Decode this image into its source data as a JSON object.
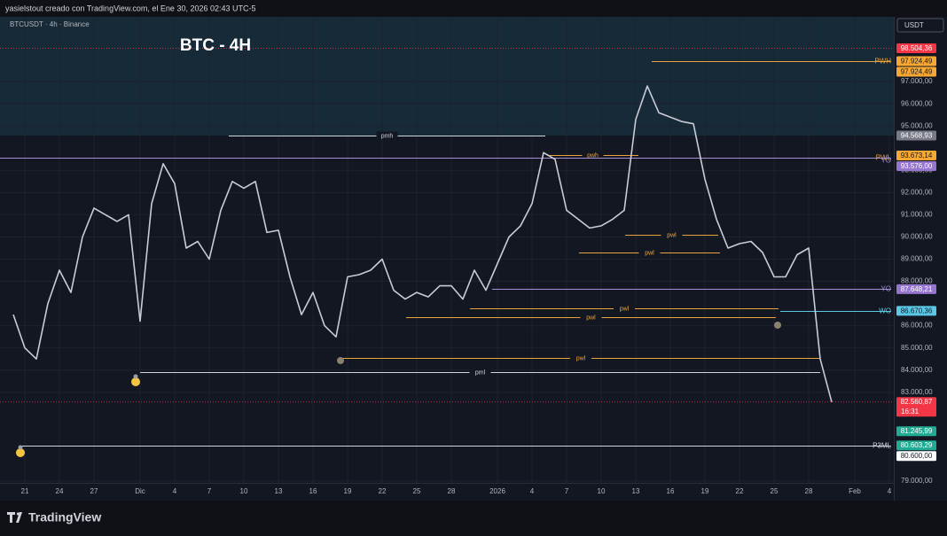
{
  "header": {
    "caption": "yasielstout creado con TradingView.com, el Ene 30, 2026 02:43 UTC-5"
  },
  "footer": {
    "logo": "TradingView"
  },
  "chart_data": {
    "type": "line",
    "symbol": "BTCUSDT · 4h · Binance",
    "title": "BTC - 4H",
    "currency": "USDT",
    "color": "#c9ccd4",
    "categories": [
      null,
      "21",
      null,
      null,
      "24",
      null,
      null,
      "27",
      null,
      null,
      null,
      "Dic",
      null,
      null,
      "4",
      null,
      null,
      "7",
      null,
      null,
      "10",
      null,
      null,
      "13",
      null,
      null,
      "16",
      null,
      null,
      "19",
      null,
      null,
      "22",
      null,
      null,
      "25",
      null,
      null,
      "28",
      null,
      null,
      null,
      "2026",
      null,
      null,
      "4",
      null,
      null,
      "7",
      null,
      null,
      "10",
      null,
      null,
      "13",
      null,
      null,
      "16",
      null,
      null,
      "19",
      null,
      null,
      "22",
      null,
      null,
      "25",
      null,
      null,
      "28",
      null,
      null,
      null,
      "Feb",
      null,
      null,
      "4"
    ],
    "values": [
      86500,
      85000,
      84500,
      87000,
      88500,
      87500,
      90000,
      91300,
      91000,
      90700,
      91000,
      86200,
      91500,
      93300,
      92400,
      89500,
      89800,
      89000,
      91200,
      92500,
      92200,
      92500,
      90200,
      90300,
      88200,
      86500,
      87500,
      86000,
      85500,
      88200,
      88300,
      88500,
      89000,
      87600,
      87200,
      87500,
      87300,
      87800,
      87800,
      87200,
      88500,
      87600,
      88800,
      90000,
      90500,
      91500,
      93800,
      93500,
      91200,
      90800,
      90400,
      90500,
      90800,
      91200,
      95300,
      96800,
      95600,
      95400,
      95200,
      95100,
      92600,
      90800,
      89500,
      89700,
      89800,
      89300,
      88200,
      88200,
      89200,
      89500,
      84500,
      82560.87,
      null,
      null,
      null,
      null,
      null
    ],
    "ylim": [
      78120,
      99920
    ],
    "yticks": [
      {
        "value": 79000,
        "label": "79.000,00"
      },
      {
        "value": 83000,
        "label": "83.000,00"
      },
      {
        "value": 84000,
        "label": "84.000,00"
      },
      {
        "value": 85000,
        "label": "85.000,00"
      },
      {
        "value": 86000,
        "label": "86.000,00"
      },
      {
        "value": 88000,
        "label": "88.000,00"
      },
      {
        "value": 89000,
        "label": "89.000,00"
      },
      {
        "value": 90000,
        "label": "90.000,00"
      },
      {
        "value": 91000,
        "label": "91.000,00"
      },
      {
        "value": 92000,
        "label": "92.000,00"
      },
      {
        "value": 93000,
        "label": "93.000,00"
      },
      {
        "value": 95000,
        "label": "95.000,00"
      },
      {
        "value": 96000,
        "label": "96.000,00"
      },
      {
        "value": 97000,
        "label": "97.000,00"
      }
    ],
    "grid": true,
    "zone": {
      "from": 94568.93,
      "color": "#172a37"
    },
    "levels": [
      {
        "label": "PWH",
        "value": 97924.49,
        "color": "#e8a33d",
        "pos": "right"
      },
      {
        "label": "pmh",
        "value": 94568.93,
        "color": "#d1d4dc",
        "pos": "center"
      },
      {
        "label": "pwh",
        "value": 93673.14,
        "color": "#e8a33d",
        "pos": "center"
      },
      {
        "label": "PWL",
        "value": 93576,
        "color": "#e8a33d",
        "pos": "right"
      },
      {
        "label": "YO",
        "value": 93576,
        "color": "#a58fd6",
        "pos": "right"
      },
      {
        "label": "pwl",
        "value": 90100,
        "color": "#e8a33d",
        "pos": "center"
      },
      {
        "label": "pwl",
        "value": 89300,
        "color": "#e8a33d",
        "pos": "center"
      },
      {
        "label": "YO",
        "value": 87648.21,
        "color": "#a58fd6",
        "pos": "right"
      },
      {
        "label": "WO",
        "value": 86670.36,
        "color": "#5bc8e6",
        "pos": "right"
      },
      {
        "label": "pwl",
        "value": 86800,
        "color": "#e8a33d",
        "pos": "center"
      },
      {
        "label": "pwl",
        "value": 86400,
        "color": "#e8a33d",
        "pos": "center"
      },
      {
        "label": "pwl",
        "value": 84560,
        "color": "#e8a33d",
        "pos": "center"
      },
      {
        "label": "pml",
        "value": 83900,
        "color": "#d1d4dc",
        "pos": "center"
      },
      {
        "label": "P3ML",
        "value": 80600,
        "color": "#d1d4dc",
        "pos": "right"
      }
    ],
    "price_labels": [
      {
        "value": 98504.36,
        "label": "98.504,36",
        "color": "#f23645",
        "text_color": "#ffffff",
        "line": true
      },
      {
        "value": 97924.49,
        "label": "97.924,49",
        "color": "#f7a833",
        "text_color": "#131722"
      },
      {
        "value": 97924.49,
        "label": "97.924,49",
        "color": "#f7a833",
        "text_color": "#131722"
      },
      {
        "value": 94568.93,
        "label": "94.568,93",
        "color": "#787b86",
        "text_color": "#ffffff"
      },
      {
        "value": 93673.14,
        "label": "93.673,14",
        "color": "#f7a833",
        "text_color": "#131722"
      },
      {
        "value": 93576,
        "label": "93.576,00",
        "color": "#9575cd",
        "text_color": "#ffffff"
      },
      {
        "value": 87648.21,
        "label": "87.648,21",
        "color": "#9575cd",
        "text_color": "#ffffff"
      },
      {
        "value": 86670.36,
        "label": "86.670,36",
        "color": "#5bc8e6",
        "text_color": "#131722"
      },
      {
        "value": 82560.87,
        "label": "82.560,87",
        "sub": "16:31",
        "color": "#f23645",
        "text_color": "#ffffff",
        "line": true
      },
      {
        "value": 81245.99,
        "label": "81.245,99",
        "color": "#22ab94",
        "text_color": "#ffffff"
      },
      {
        "value": 80603.29,
        "label": "80.603,29",
        "color": "#22ab94",
        "text_color": "#ffffff"
      },
      {
        "value": 80600,
        "label": "80.600,00",
        "color": "#ffffff",
        "text_color": "#131722"
      }
    ]
  }
}
